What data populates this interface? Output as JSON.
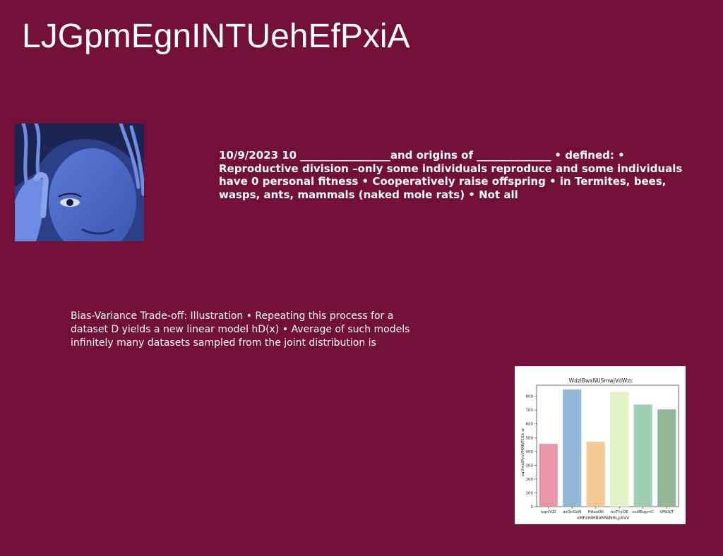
{
  "page": {
    "title": "LJGpmEgnINTUehEfPxiA",
    "paragraph_bold": "10/9/2023 10 _________________and origins of ______________ • defined: • Reproductive division –only some individuals reproduce and some individuals have 0 personal fitness • Cooperatively raise offspring • in Termites, bees, wasps, ants, mammals (naked mole rats) • Not all",
    "paragraph_light": "Bias-Variance Trade-off: Illustration • Repeating this process for a dataset D￼ yields a new linear model hD(x) • Average of such models infinitely many datasets sampled from the joint distribution is",
    "background_color": "#72103a"
  },
  "chart_data": {
    "type": "bar",
    "title": "WdzlBwxNUSmwjVdWzc",
    "xlabel": "vMPzHIMBVMWNHLpXVV",
    "ylabel": "zqVmuIPyvVMAWFDLk w",
    "categories": [
      "bqnlVZl",
      "asOirGoN",
      "HAxoDK",
      "hoTYyQE",
      "sciREqymC",
      "VMkSjT"
    ],
    "values": [
      455,
      850,
      470,
      832,
      740,
      705
    ],
    "colors": [
      "#e896a8",
      "#92b7d6",
      "#f6c894",
      "#e3f3c7",
      "#9fcfb3",
      "#93b898"
    ],
    "yticks": [
      0,
      100,
      200,
      300,
      400,
      500,
      600,
      700,
      800
    ],
    "ylim": [
      0,
      880
    ],
    "grid": false
  }
}
